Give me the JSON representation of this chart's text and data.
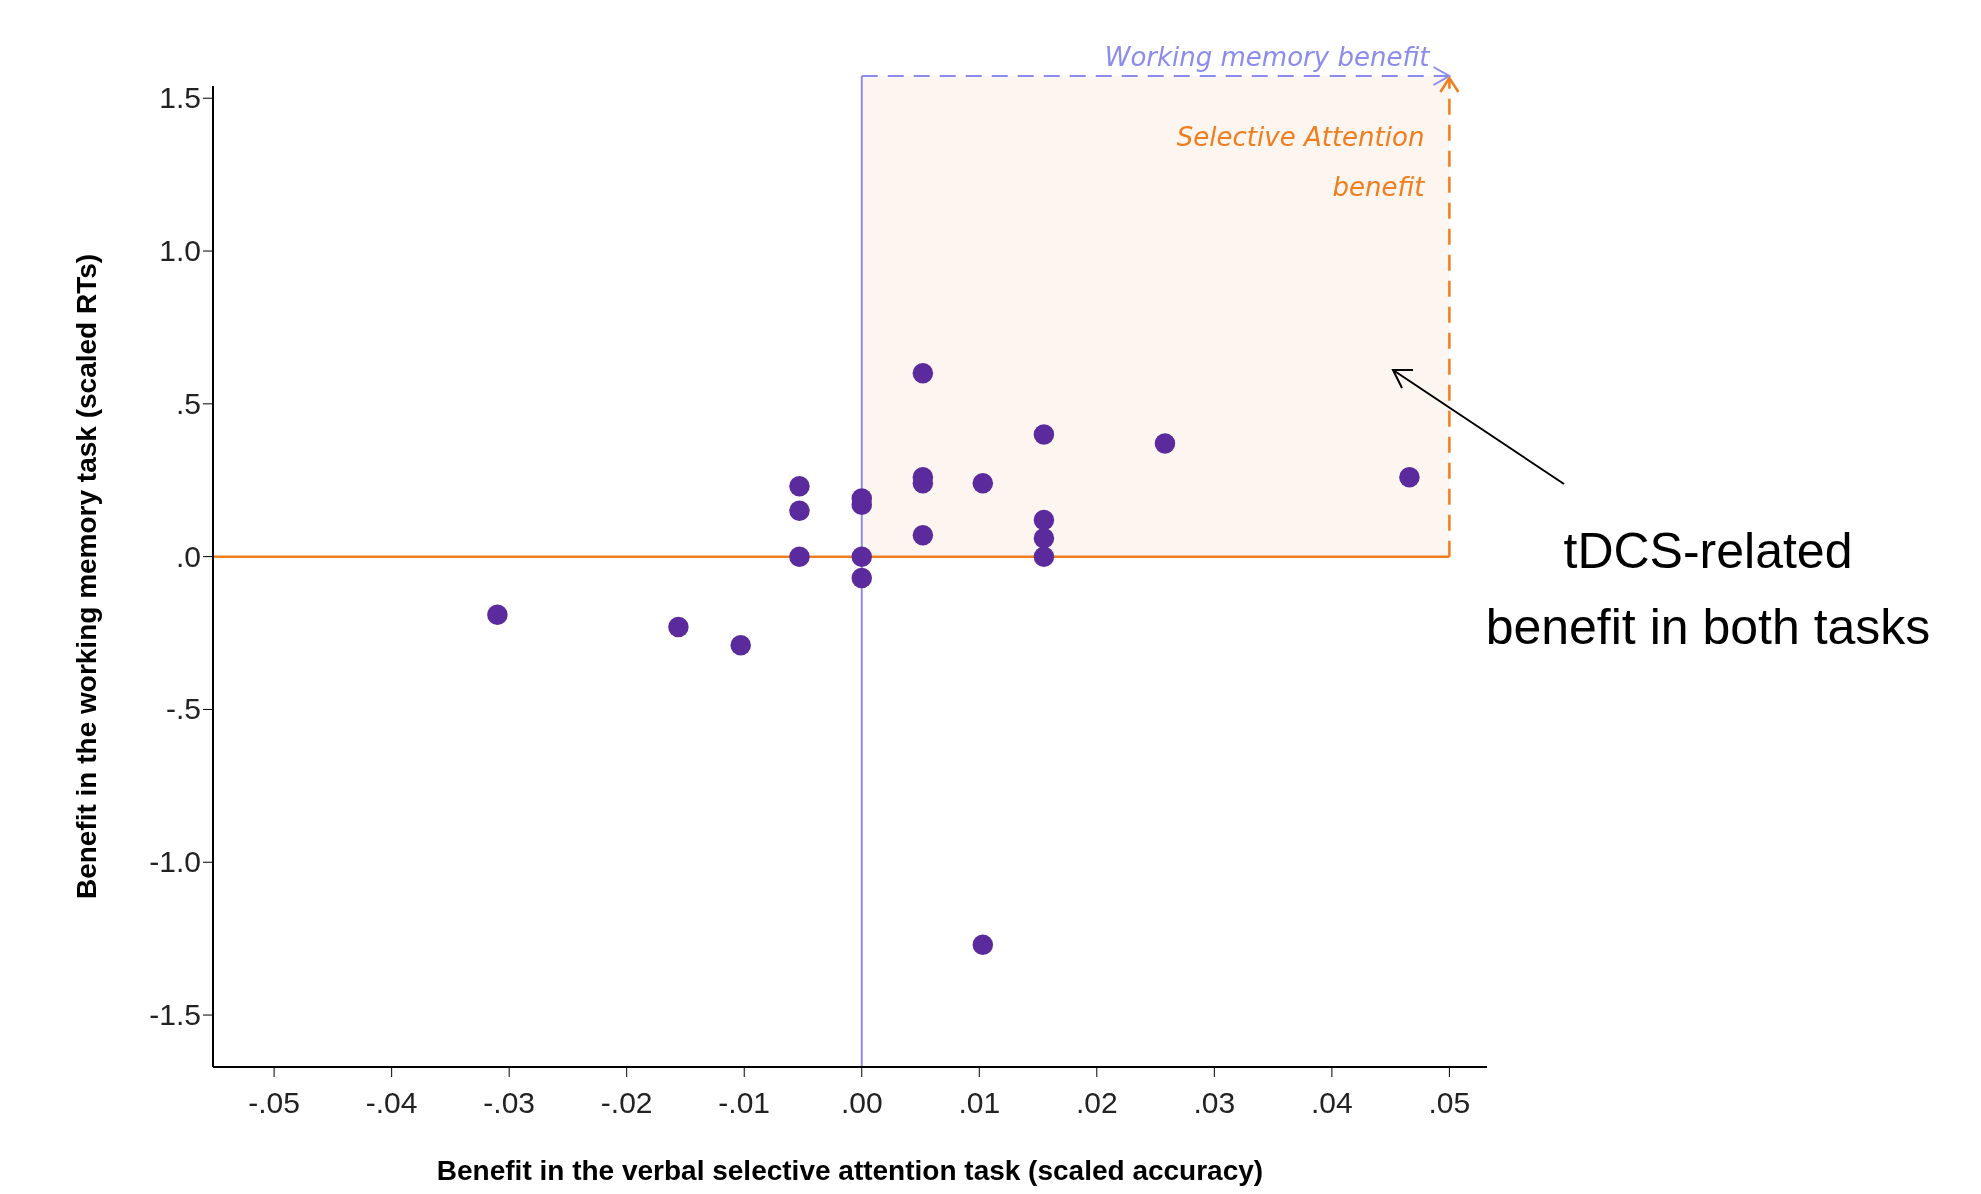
{
  "chart_data": {
    "type": "scatter",
    "xlabel": "Benefit in the verbal selective attention task (scaled accuracy)",
    "ylabel": "Benefit in the working memory task (scaled RTs)",
    "x": [
      -0.031,
      -0.0156,
      -0.0103,
      -0.0053,
      -0.0053,
      -0.0053,
      0,
      0,
      0,
      0,
      0.0052,
      0.0052,
      0.0052,
      0.0052,
      0.0103,
      0.0103,
      0.0155,
      0.0155,
      0.0155,
      0.0155,
      0.0258,
      0.0466
    ],
    "series": [
      {
        "color": "#5b2a9c",
        "values": [
          -0.19,
          -0.23,
          -0.29,
          0.23,
          0.15,
          0,
          0.19,
          0.17,
          0,
          -0.07,
          0.6,
          0.26,
          0.24,
          0.07,
          0.24,
          -1.27,
          0.4,
          0.12,
          0.06,
          0,
          0.37,
          0.26
        ]
      }
    ],
    "xlim": [
      -0.0552,
      0.0532
    ],
    "ylim": [
      -1.67,
      1.54
    ],
    "xticks": [
      {
        "value": -0.05,
        "label": "-.05"
      },
      {
        "value": -0.04,
        "label": "-.04"
      },
      {
        "value": -0.03,
        "label": "-.03"
      },
      {
        "value": -0.02,
        "label": "-.02"
      },
      {
        "value": -0.01,
        "label": "-.01"
      },
      {
        "value": 0,
        "label": ".00"
      },
      {
        "value": 0.01,
        "label": ".01"
      },
      {
        "value": 0.02,
        "label": ".02"
      },
      {
        "value": 0.03,
        "label": ".03"
      },
      {
        "value": 0.04,
        "label": ".04"
      },
      {
        "value": 0.05,
        "label": ".05"
      }
    ],
    "yticks": [
      {
        "value": -1.5,
        "label": "-1.5"
      },
      {
        "value": -1,
        "label": "-1.0"
      },
      {
        "value": -0.5,
        "label": "-.5"
      },
      {
        "value": 0,
        "label": ".0"
      },
      {
        "value": 0.5,
        "label": ".5"
      },
      {
        "value": 1,
        "label": "1.0"
      },
      {
        "value": 1.5,
        "label": "1.5"
      }
    ],
    "ref_lines": [
      {
        "axis": "y",
        "value": 0,
        "color": "#f07d1e"
      },
      {
        "axis": "x",
        "value": 0,
        "color": "#8c8cf0"
      },
      {
        "axis": "x",
        "value": 0.05,
        "color": "#f07d1e",
        "line_style": "dashed",
        "label": "Selective Attention benefit"
      }
    ],
    "bands": [
      {
        "axis": "x",
        "from": 0,
        "to": 0.05,
        "color": "#fdf5f0"
      }
    ],
    "annotations": [
      "Working memory benefit",
      "tDCS-related benefit in both tasks"
    ],
    "marker": "circle",
    "grid": false
  }
}
